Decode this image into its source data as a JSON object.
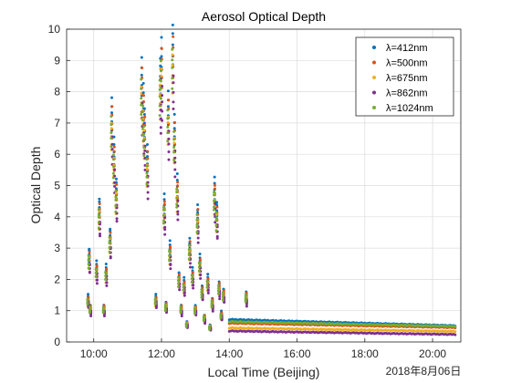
{
  "chart_data": {
    "type": "scatter",
    "title": "Aerosol Optical Depth",
    "xlabel": "Local Time (Beijing)",
    "ylabel": "Optical Depth",
    "date_note": "2018年8月06日",
    "xlim": [
      "09:12",
      "20:50"
    ],
    "ylim": [
      0,
      10
    ],
    "x_ticks": [
      "10:00",
      "12:00",
      "14:00",
      "16:00",
      "18:00",
      "20:00"
    ],
    "y_ticks": [
      0,
      1,
      2,
      3,
      4,
      5,
      6,
      7,
      8,
      9,
      10
    ],
    "grid": true,
    "legend_position": "top-right",
    "series": [
      {
        "name": "λ=412nm",
        "color": "#0072BD"
      },
      {
        "name": "λ=500nm",
        "color": "#D95319"
      },
      {
        "name": "λ=675nm",
        "color": "#EDB120"
      },
      {
        "name": "λ=862nm",
        "color": "#7E2F8E"
      },
      {
        "name": "λ=1024nm",
        "color": "#77AC30"
      }
    ],
    "points": [
      [
        "09:50",
        1.4
      ],
      [
        "09:52",
        2.8
      ],
      [
        "09:54",
        1.1
      ],
      [
        "10:05",
        2.4
      ],
      [
        "10:10",
        4.3
      ],
      [
        "10:18",
        1.1
      ],
      [
        "10:22",
        2.3
      ],
      [
        "10:29",
        3.4
      ],
      [
        "10:32",
        7.3
      ],
      [
        "10:36",
        6.1
      ],
      [
        "10:40",
        4.9
      ],
      [
        "11:25",
        8.5
      ],
      [
        "11:28",
        7.7
      ],
      [
        "11:30",
        7.0
      ],
      [
        "11:35",
        5.9
      ],
      [
        "11:50",
        1.4
      ],
      [
        "11:58",
        8.5
      ],
      [
        "12:00",
        9.1
      ],
      [
        "12:05",
        4.4
      ],
      [
        "12:08",
        1.2
      ],
      [
        "12:12",
        7.5
      ],
      [
        "12:15",
        3.0
      ],
      [
        "12:20",
        9.5
      ],
      [
        "12:23",
        6.8
      ],
      [
        "12:28",
        5.0
      ],
      [
        "12:31",
        2.1
      ],
      [
        "12:35",
        1.1
      ],
      [
        "12:40",
        1.9
      ],
      [
        "12:45",
        0.6
      ],
      [
        "12:50",
        3.1
      ],
      [
        "12:55",
        2.2
      ],
      [
        "13:00",
        1.1
      ],
      [
        "13:04",
        4.1
      ],
      [
        "13:08",
        2.6
      ],
      [
        "13:12",
        1.7
      ],
      [
        "13:16",
        0.8
      ],
      [
        "13:22",
        2.0
      ],
      [
        "13:26",
        0.5
      ],
      [
        "13:30",
        1.3
      ],
      [
        "13:34",
        4.9
      ],
      [
        "13:38",
        4.2
      ],
      [
        "13:42",
        1.8
      ],
      [
        "13:46",
        0.9
      ],
      [
        "13:50",
        1.6
      ],
      [
        "14:30",
        1.5
      ]
    ],
    "continuous_bands": [
      {
        "name": "λ=412nm",
        "color": "#0072BD",
        "start": [
          "14:00",
          0.72
        ],
        "end": [
          "20:40",
          0.52
        ]
      },
      {
        "name": "λ=500nm",
        "color": "#D95319",
        "start": [
          "14:00",
          0.6
        ],
        "end": [
          "20:40",
          0.46
        ]
      },
      {
        "name": "λ=675nm",
        "color": "#EDB120",
        "start": [
          "14:00",
          0.45
        ],
        "end": [
          "20:40",
          0.34
        ]
      },
      {
        "name": "λ=862nm",
        "color": "#7E2F8E",
        "start": [
          "14:00",
          0.35
        ],
        "end": [
          "20:40",
          0.24
        ]
      },
      {
        "name": "λ=1024nm",
        "color": "#77AC30",
        "start": [
          "14:00",
          0.65
        ],
        "end": [
          "20:40",
          0.5
        ]
      }
    ]
  }
}
